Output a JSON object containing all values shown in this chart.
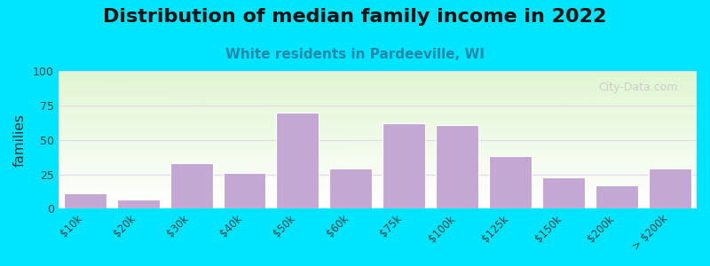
{
  "title": "Distribution of median family income in 2022",
  "subtitle": "White residents in Pardeeville, WI",
  "xlabel": "",
  "ylabel": "families",
  "categories": [
    "$10k",
    "$20k",
    "$30k",
    "$40k",
    "$50k",
    "$60k",
    "$75k",
    "$100k",
    "$125k",
    "$150k",
    "$200k",
    "> $200k"
  ],
  "values": [
    11,
    7,
    33,
    26,
    70,
    29,
    62,
    61,
    38,
    23,
    17,
    29
  ],
  "bar_color": "#c4a8d4",
  "bar_edgecolor": "#ffffff",
  "ylim": [
    0,
    100
  ],
  "yticks": [
    0,
    25,
    50,
    75,
    100
  ],
  "background_outer": "#00e5ff",
  "background_plot_top": "#e8f5e0",
  "background_plot_bottom": "#f5f0f8",
  "grid_color": "#e0d8e8",
  "title_fontsize": 16,
  "subtitle_fontsize": 11,
  "subtitle_color": "#2288aa",
  "ylabel_fontsize": 11,
  "watermark": "City-Data.com",
  "watermark_color": "#c0c0c0"
}
